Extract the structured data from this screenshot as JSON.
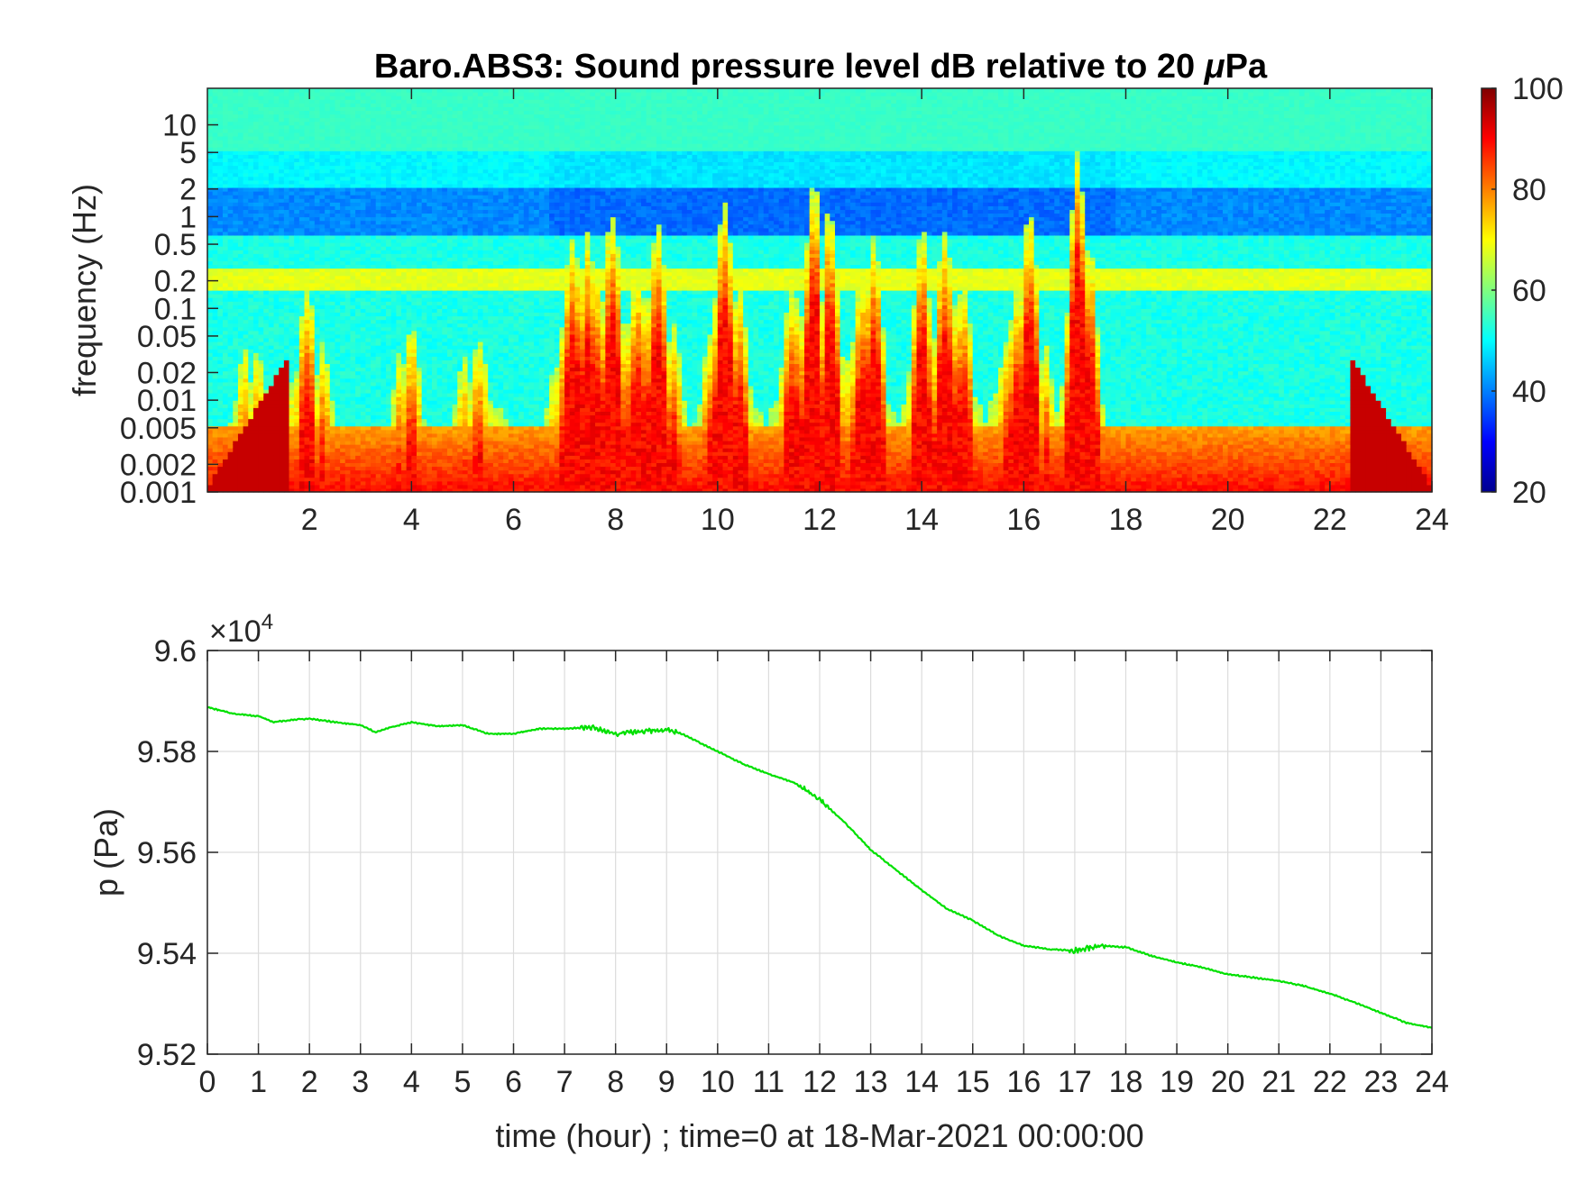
{
  "chart_data": [
    {
      "type": "heatmap",
      "title": "Baro.ABS3: Sound pressure level dB relative to 20 μPa",
      "title_main": "Baro.ABS3: Sound pressure level dB relative to 20 ",
      "title_mu": "μ",
      "title_tail": "Pa",
      "ylabel": "frequency (Hz)",
      "xlabel": "",
      "x_range": [
        0,
        24
      ],
      "x_ticks": [
        2,
        4,
        6,
        8,
        10,
        12,
        14,
        16,
        18,
        20,
        22,
        24
      ],
      "x_tick_labels": [
        "2",
        "4",
        "6",
        "8",
        "10",
        "12",
        "14",
        "16",
        "18",
        "20",
        "22",
        "24"
      ],
      "y_scale": "log",
      "y_range": [
        0.001,
        25
      ],
      "y_ticks": [
        10,
        5,
        2,
        1,
        0.5,
        0.2,
        0.1,
        0.05,
        0.02,
        0.01,
        0.005,
        0.002,
        0.001
      ],
      "y_tick_labels": [
        "10",
        "5",
        "2",
        "1",
        "0.5",
        "0.2",
        "0.1",
        "0.05",
        "0.02",
        "0.01",
        "0.005",
        "0.002",
        "0.001"
      ],
      "colormap": "jet",
      "colorbar": {
        "range": [
          20,
          100
        ],
        "ticks": [
          100,
          80,
          60,
          40,
          20
        ],
        "tick_labels": [
          "100",
          "80",
          "60",
          "40",
          "20"
        ]
      },
      "activity_episodes_hours": [
        {
          "center": 0.8,
          "width": 0.5,
          "level": 0.45
        },
        {
          "center": 2.0,
          "width": 0.6,
          "level": 0.55
        },
        {
          "center": 3.9,
          "width": 0.4,
          "level": 0.5
        },
        {
          "center": 5.3,
          "width": 0.6,
          "level": 0.45
        },
        {
          "center": 7.6,
          "width": 0.9,
          "level": 0.9
        },
        {
          "center": 8.7,
          "width": 0.6,
          "level": 0.85
        },
        {
          "center": 10.2,
          "width": 0.6,
          "level": 0.8
        },
        {
          "center": 11.9,
          "width": 0.7,
          "level": 0.95
        },
        {
          "center": 12.9,
          "width": 0.5,
          "level": 0.8
        },
        {
          "center": 14.0,
          "width": 0.4,
          "level": 0.75
        },
        {
          "center": 14.6,
          "width": 0.5,
          "level": 0.85
        },
        {
          "center": 16.0,
          "width": 0.6,
          "level": 0.8
        },
        {
          "center": 17.1,
          "width": 0.4,
          "level": 1.0
        }
      ]
    },
    {
      "type": "line",
      "title": "",
      "xlabel": "time (hour) ; time=0 at 18-Mar-2021 00:00:00",
      "ylabel": "p (Pa)",
      "exponent_label": "×10",
      "exponent_power": "4",
      "xlim": [
        0,
        24
      ],
      "ylim": [
        9.52,
        9.6
      ],
      "scale_factor": 10000,
      "x_ticks": [
        0,
        1,
        2,
        3,
        4,
        5,
        6,
        7,
        8,
        9,
        10,
        11,
        12,
        13,
        14,
        15,
        16,
        17,
        18,
        19,
        20,
        21,
        22,
        23,
        24
      ],
      "x_tick_labels": [
        "0",
        "1",
        "2",
        "3",
        "4",
        "5",
        "6",
        "7",
        "8",
        "9",
        "10",
        "11",
        "12",
        "13",
        "14",
        "15",
        "16",
        "17",
        "18",
        "19",
        "20",
        "21",
        "22",
        "23",
        "24"
      ],
      "y_ticks": [
        9.6,
        9.58,
        9.56,
        9.54,
        9.52
      ],
      "y_tick_labels": [
        "9.6",
        "9.58",
        "9.56",
        "9.54",
        "9.52"
      ],
      "grid": true,
      "series": [
        {
          "color": "#00e000",
          "x": [
            0,
            0.1,
            0.5,
            1,
            1.3,
            1.6,
            2,
            2.5,
            3,
            3.3,
            3.6,
            4,
            4.5,
            5,
            5.5,
            6,
            6.5,
            7,
            7.5,
            8,
            8.5,
            9,
            9.3,
            9.6,
            10,
            10.5,
            11,
            11.5,
            12,
            12.5,
            13,
            13.5,
            14,
            14.5,
            15,
            15.5,
            16,
            16.5,
            17,
            17.5,
            18,
            18.5,
            19,
            19.5,
            20,
            20.5,
            21,
            21.5,
            22,
            22.5,
            23,
            23.5,
            24
          ],
          "y": [
            9.5888,
            9.5885,
            9.5875,
            9.587,
            9.5858,
            9.5862,
            9.5865,
            9.5858,
            9.5852,
            9.5838,
            9.5848,
            9.5858,
            9.585,
            9.5852,
            9.5835,
            9.5835,
            9.5845,
            9.5845,
            9.5848,
            9.5835,
            9.584,
            9.5843,
            9.5835,
            9.582,
            9.58,
            9.5775,
            9.5755,
            9.5738,
            9.5705,
            9.5658,
            9.5605,
            9.5565,
            9.5525,
            9.5488,
            9.5465,
            9.5435,
            9.5415,
            9.5408,
            9.5405,
            9.5415,
            9.5412,
            9.5395,
            9.5382,
            9.5372,
            9.5358,
            9.5352,
            9.5345,
            9.5335,
            9.532,
            9.5302,
            9.5282,
            9.5262,
            9.5252
          ]
        }
      ]
    }
  ]
}
